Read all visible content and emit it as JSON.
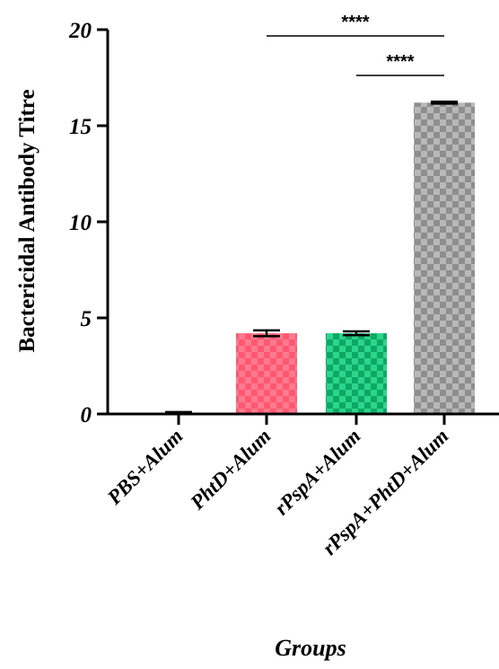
{
  "chart_data": {
    "type": "bar",
    "ylabel": "Bactericidal Antibody Titre",
    "xlabel": "Groups",
    "ylim": [
      0,
      20
    ],
    "yticks": [
      0,
      5,
      10,
      15,
      20
    ],
    "categories": [
      "PBS+Alum",
      "PhtD+Alum",
      "rPspA+Alum",
      "rPspA+PhtD+Alum"
    ],
    "values": [
      0,
      4.2,
      4.2,
      16.2
    ],
    "errors": [
      0.1,
      0.15,
      0.1,
      0.05
    ],
    "bar_colors": [
      "#ffffff",
      "#ff7a8f",
      "#2bd68a",
      "#b8b8b8"
    ],
    "bar_pattern_colors": [
      "#ffffff",
      "#ff5870",
      "#0da864",
      "#8e8e8e"
    ],
    "significance": [
      {
        "from": "PhtD+Alum",
        "to": "rPspA+PhtD+Alum",
        "label": "****"
      },
      {
        "from": "rPspA+Alum",
        "to": "rPspA+PhtD+Alum",
        "label": "****"
      }
    ]
  }
}
